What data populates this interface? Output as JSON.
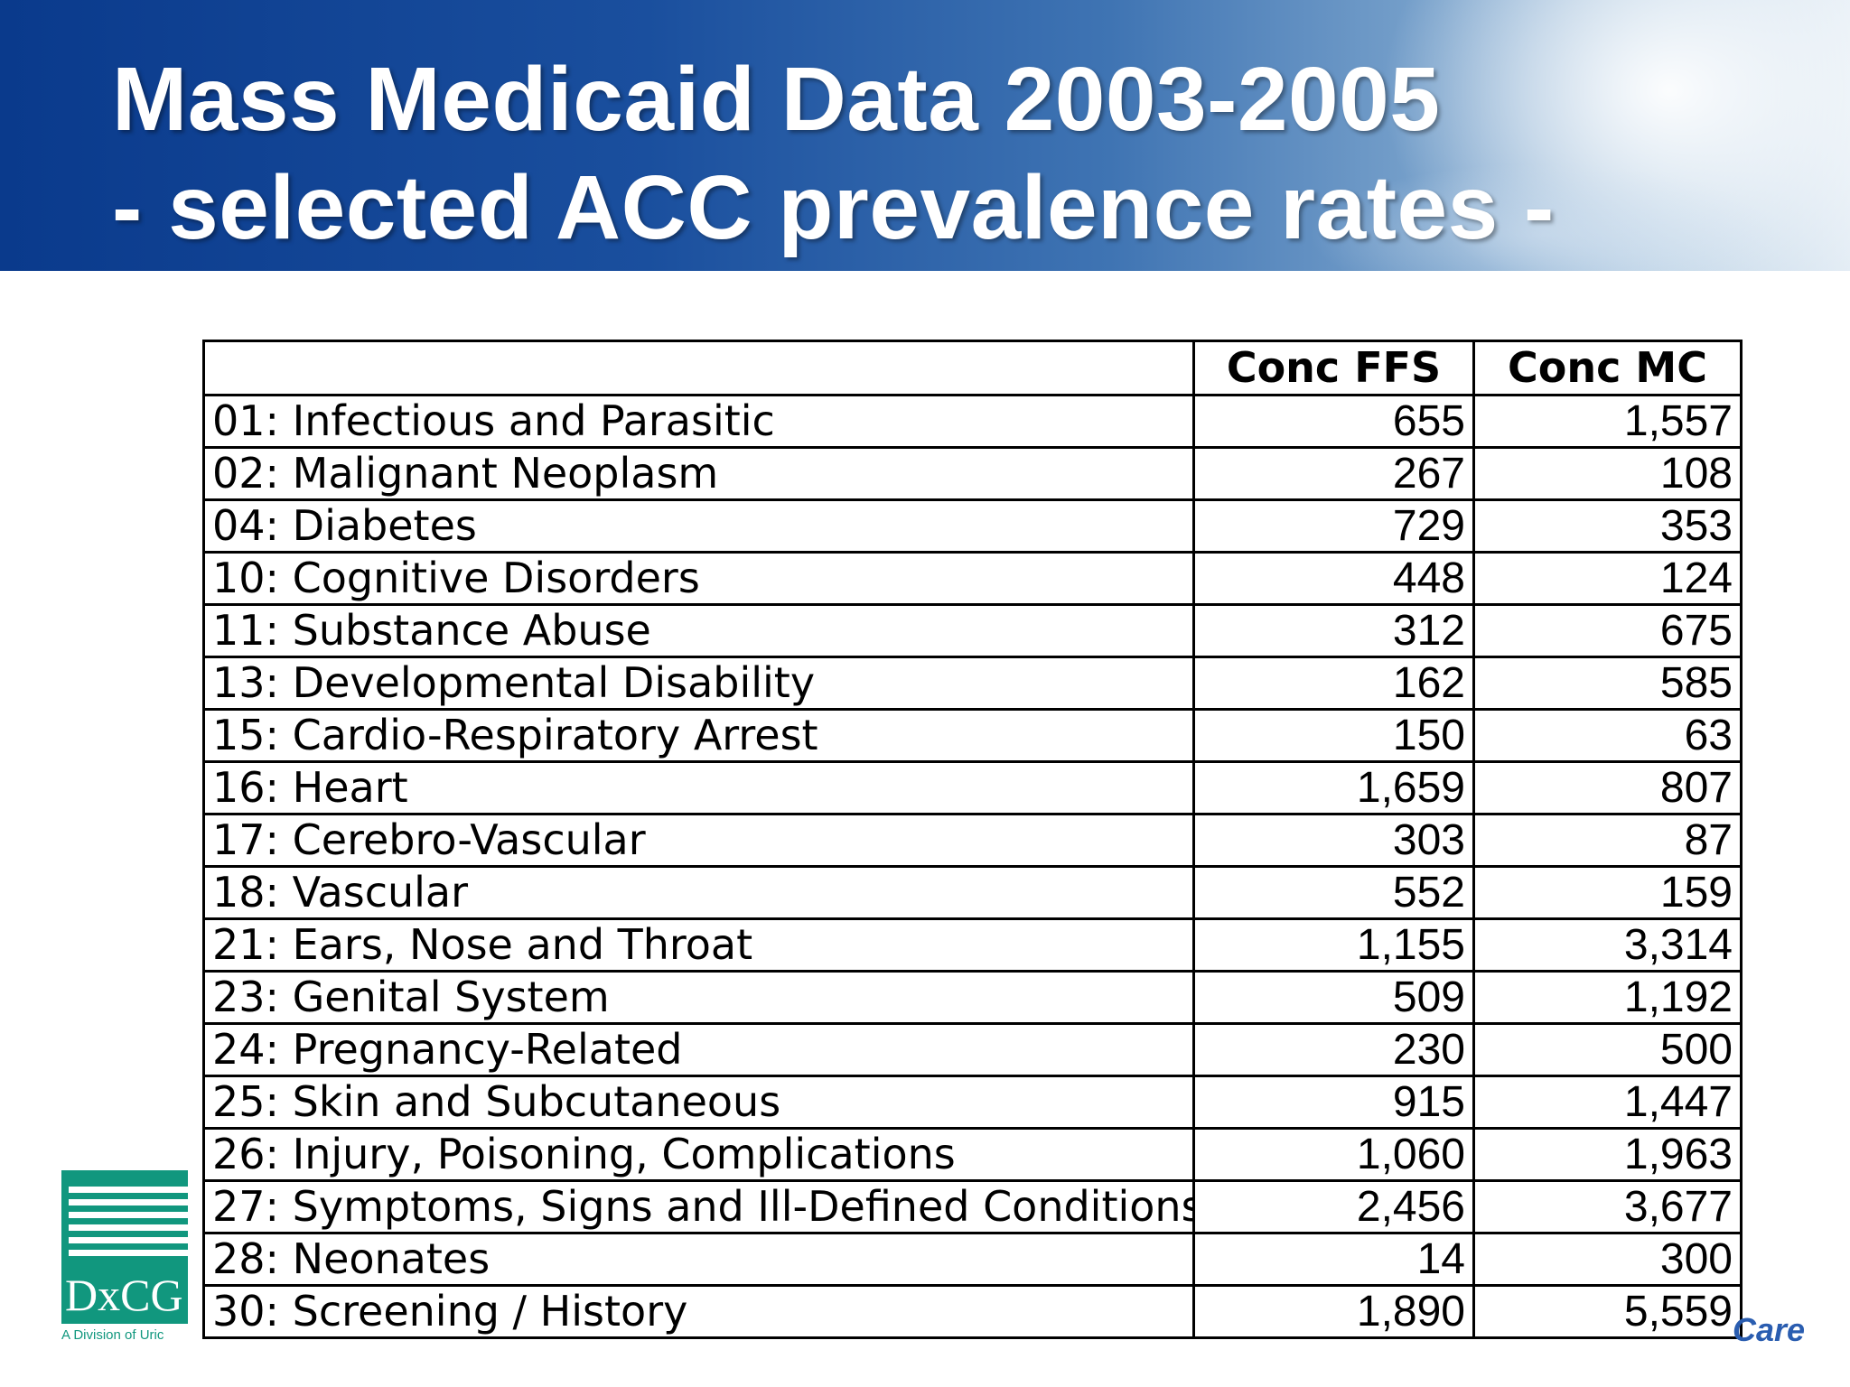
{
  "slide": {
    "title_line1": "Mass Medicaid Data 2003-2005",
    "title_line2": "- selected ACC prevalence rates -"
  },
  "table": {
    "headers": [
      "",
      "Conc FFS",
      "Conc MC"
    ],
    "rows": [
      {
        "label": "01: Infectious and Parasitic",
        "ffs": "655",
        "mc": "1,557"
      },
      {
        "label": "02: Malignant Neoplasm",
        "ffs": "267",
        "mc": "108"
      },
      {
        "label": "04: Diabetes",
        "ffs": "729",
        "mc": "353"
      },
      {
        "label": "10: Cognitive Disorders",
        "ffs": "448",
        "mc": "124"
      },
      {
        "label": "11: Substance Abuse",
        "ffs": "312",
        "mc": "675"
      },
      {
        "label": "13: Developmental Disability",
        "ffs": "162",
        "mc": "585"
      },
      {
        "label": "15: Cardio-Respiratory Arrest",
        "ffs": "150",
        "mc": "63"
      },
      {
        "label": "16: Heart",
        "ffs": "1,659",
        "mc": "807"
      },
      {
        "label": "17: Cerebro-Vascular",
        "ffs": "303",
        "mc": "87"
      },
      {
        "label": "18: Vascular",
        "ffs": "552",
        "mc": "159"
      },
      {
        "label": "21: Ears, Nose and Throat",
        "ffs": "1,155",
        "mc": "3,314"
      },
      {
        "label": "23: Genital System",
        "ffs": "509",
        "mc": "1,192"
      },
      {
        "label": "24: Pregnancy-Related",
        "ffs": "230",
        "mc": "500"
      },
      {
        "label": "25: Skin and Subcutaneous",
        "ffs": "915",
        "mc": "1,447"
      },
      {
        "label": "26: Injury, Poisoning, Complications",
        "ffs": "1,060",
        "mc": "1,963"
      },
      {
        "label": "27: Symptoms, Signs and Ill-Defined Conditions",
        "ffs": "2,456",
        "mc": "3,677"
      },
      {
        "label": "28: Neonates",
        "ffs": "14",
        "mc": "300"
      },
      {
        "label": "30: Screening / History",
        "ffs": "1,890",
        "mc": "5,559"
      }
    ]
  },
  "logo": {
    "text": "DxCG",
    "caption": "A Division of Uric",
    "color": "#11977e"
  },
  "footer": {
    "partial_text": "Care"
  },
  "colors": {
    "header_dark": "#0a3a8c",
    "header_light": "#e4edf5",
    "care_text": "#2a5db0"
  }
}
